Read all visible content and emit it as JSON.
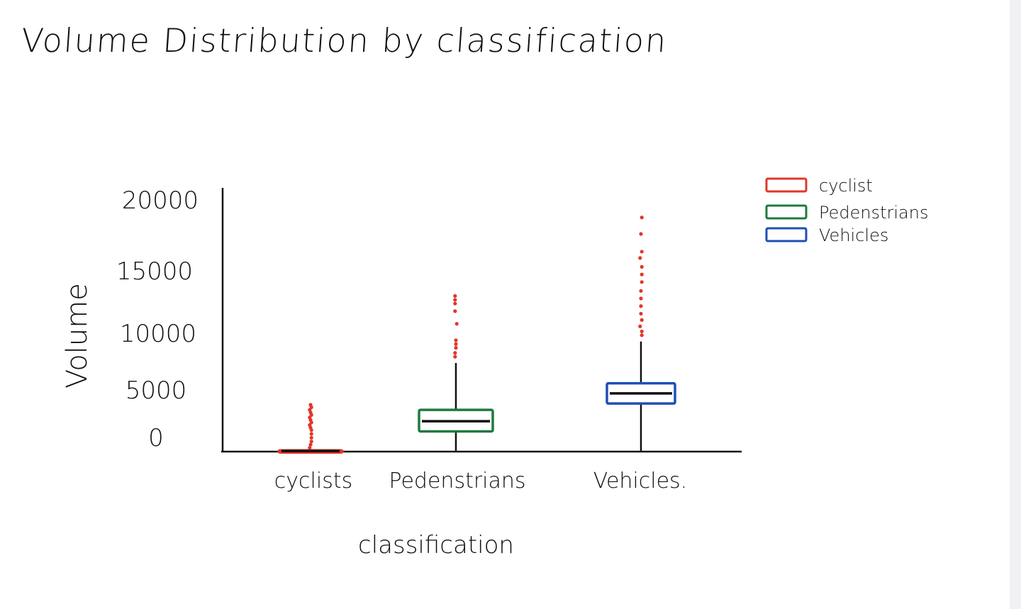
{
  "chart_data": {
    "type": "box",
    "title": "Volume Distribution by classification",
    "xlabel": "classification",
    "ylabel": "Volume",
    "ylim": [
      0,
      20000
    ],
    "yticks": [
      {
        "value": 0,
        "label": "0"
      },
      {
        "value": 5000,
        "label": "5000"
      },
      {
        "value": 10000,
        "label": "10000"
      },
      {
        "value": 15000,
        "label": "15000"
      },
      {
        "value": 20000,
        "label": "20000"
      }
    ],
    "categories": [
      "cyclists",
      "Pedenstrians",
      "Vehicles."
    ],
    "series": [
      {
        "name": "cyclist",
        "color": "#e2362a",
        "box": {
          "whisker_low": 0,
          "q1": 0,
          "median": 50,
          "q3": 100,
          "whisker_high": 150
        },
        "outliers": [
          300,
          550,
          800,
          1100,
          1400,
          1700,
          1900,
          2100,
          2300,
          2500,
          2700,
          2900,
          3100,
          3300,
          3500,
          3700
        ]
      },
      {
        "name": "Pedenstrians",
        "color": "#1f7a3e",
        "box": {
          "whisker_low": 0,
          "q1": 1600,
          "median": 2400,
          "q3": 3300,
          "whisker_high": 7000
        },
        "outliers": [
          7500,
          7800,
          8200,
          8500,
          8800,
          10100,
          11100,
          11700,
          12000,
          12300
        ]
      },
      {
        "name": "Vehicles",
        "color": "#1f4fb3",
        "box": {
          "whisker_low": 0,
          "q1": 3800,
          "median": 4600,
          "q3": 5400,
          "whisker_high": 8700
        },
        "outliers": [
          9200,
          9500,
          9900,
          10400,
          10900,
          11500,
          12100,
          12700,
          13400,
          14000,
          14600,
          15300,
          15800,
          17200,
          18500
        ]
      }
    ],
    "legend": {
      "position": "top-right",
      "items": [
        "cyclist",
        "Pedenstrians",
        "Vehicles"
      ]
    }
  }
}
